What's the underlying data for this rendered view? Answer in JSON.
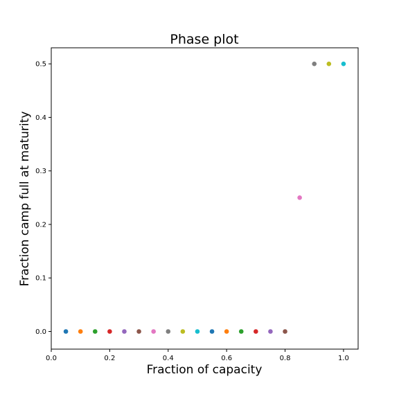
{
  "chart_data": {
    "type": "scatter",
    "title": "Phase plot",
    "xlabel": "Fraction of capacity",
    "ylabel": "Fraction camp full at maturity",
    "xlim": [
      0.0,
      1.05
    ],
    "ylim": [
      -0.033,
      0.53
    ],
    "xticks": [
      "0.0",
      "0.2",
      "0.4",
      "0.6",
      "0.8",
      "1.0"
    ],
    "yticks": [
      "0.0",
      "0.1",
      "0.2",
      "0.3",
      "0.4",
      "0.5"
    ],
    "grid": false,
    "legend": "none",
    "points": [
      {
        "x": 0.05,
        "y": 0.0,
        "color": "#1f77b4"
      },
      {
        "x": 0.1,
        "y": 0.0,
        "color": "#ff7f0e"
      },
      {
        "x": 0.15,
        "y": 0.0,
        "color": "#2ca02c"
      },
      {
        "x": 0.2,
        "y": 0.0,
        "color": "#d62728"
      },
      {
        "x": 0.25,
        "y": 0.0,
        "color": "#9467bd"
      },
      {
        "x": 0.3,
        "y": 0.0,
        "color": "#8c564b"
      },
      {
        "x": 0.35,
        "y": 0.0,
        "color": "#e377c2"
      },
      {
        "x": 0.4,
        "y": 0.0,
        "color": "#7f7f7f"
      },
      {
        "x": 0.45,
        "y": 0.0,
        "color": "#bcbd22"
      },
      {
        "x": 0.5,
        "y": 0.0,
        "color": "#17becf"
      },
      {
        "x": 0.55,
        "y": 0.0,
        "color": "#1f77b4"
      },
      {
        "x": 0.6,
        "y": 0.0,
        "color": "#ff7f0e"
      },
      {
        "x": 0.65,
        "y": 0.0,
        "color": "#2ca02c"
      },
      {
        "x": 0.7,
        "y": 0.0,
        "color": "#d62728"
      },
      {
        "x": 0.75,
        "y": 0.0,
        "color": "#9467bd"
      },
      {
        "x": 0.8,
        "y": 0.0,
        "color": "#8c564b"
      },
      {
        "x": 0.85,
        "y": 0.25,
        "color": "#e377c2"
      },
      {
        "x": 0.9,
        "y": 0.5,
        "color": "#7f7f7f"
      },
      {
        "x": 0.95,
        "y": 0.5,
        "color": "#bcbd22"
      },
      {
        "x": 1.0,
        "y": 0.5,
        "color": "#17becf"
      }
    ]
  }
}
